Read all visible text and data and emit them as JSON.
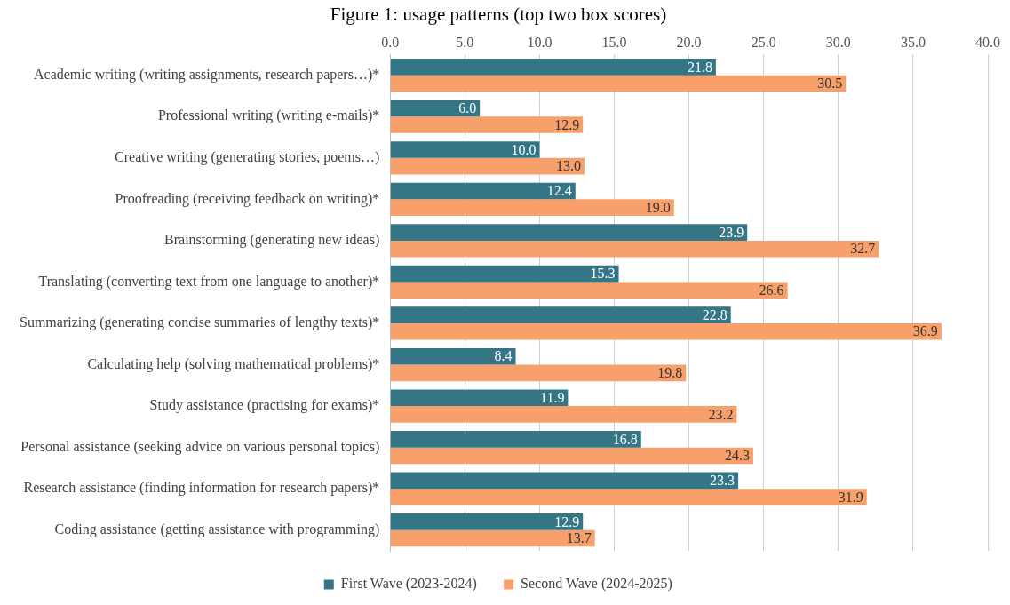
{
  "chart_data": {
    "type": "bar",
    "orientation": "horizontal",
    "title": "Figure 1: usage patterns (top two box scores)",
    "categories": [
      "Academic writing (writing assignments, research papers…)*",
      "Professional writing (writing e-mails)*",
      "Creative writing (generating stories, poems…)",
      "Proofreading (receiving feedback on writing)*",
      "Brainstorming (generating new ideas)",
      "Translating (converting text from one language to another)*",
      "Summarizing (generating concise summaries of lengthy texts)*",
      "Calculating help (solving mathematical problems)*",
      "Study assistance (practising for exams)*",
      "Personal assistance (seeking advice on various personal topics)",
      "Research assistance (finding information for research papers)*",
      "Coding assistance (getting assistance with programming)"
    ],
    "series": [
      {
        "name": "First Wave (2023-2024)",
        "color": "#347686",
        "values": [
          21.8,
          6.0,
          10.0,
          12.4,
          23.9,
          15.3,
          22.8,
          8.4,
          11.9,
          16.8,
          23.3,
          12.9
        ]
      },
      {
        "name": "Second Wave (2024-2025)",
        "color": "#f7a06c",
        "values": [
          30.5,
          12.9,
          13.0,
          19.0,
          32.7,
          26.6,
          36.9,
          19.8,
          23.2,
          24.3,
          31.9,
          13.7
        ]
      }
    ],
    "xlim": [
      0,
      40
    ],
    "xticks": [
      {
        "value": 0,
        "label": "0.0"
      },
      {
        "value": 5,
        "label": "5.0"
      },
      {
        "value": 10,
        "label": "10.0"
      },
      {
        "value": 15,
        "label": "15.0"
      },
      {
        "value": 20,
        "label": "20.0"
      },
      {
        "value": 25,
        "label": "25.0"
      },
      {
        "value": 30,
        "label": "30.0"
      },
      {
        "value": 35,
        "label": "35.0"
      },
      {
        "value": 40,
        "label": "40.0"
      }
    ],
    "grid": "x",
    "legend": "bottom",
    "value_labels": [
      [
        "21.8",
        "6.0",
        "10.0",
        "12.4",
        "23.9",
        "15.3",
        "22.8",
        "8.4",
        "11.9",
        "16.8",
        "23.3",
        "12.9"
      ],
      [
        "30.5",
        "12.9",
        "13.0",
        "19.0",
        "32.7",
        "26.6",
        "36.9",
        "19.8",
        "23.2",
        "24.3",
        "31.9",
        "13.7"
      ]
    ]
  }
}
